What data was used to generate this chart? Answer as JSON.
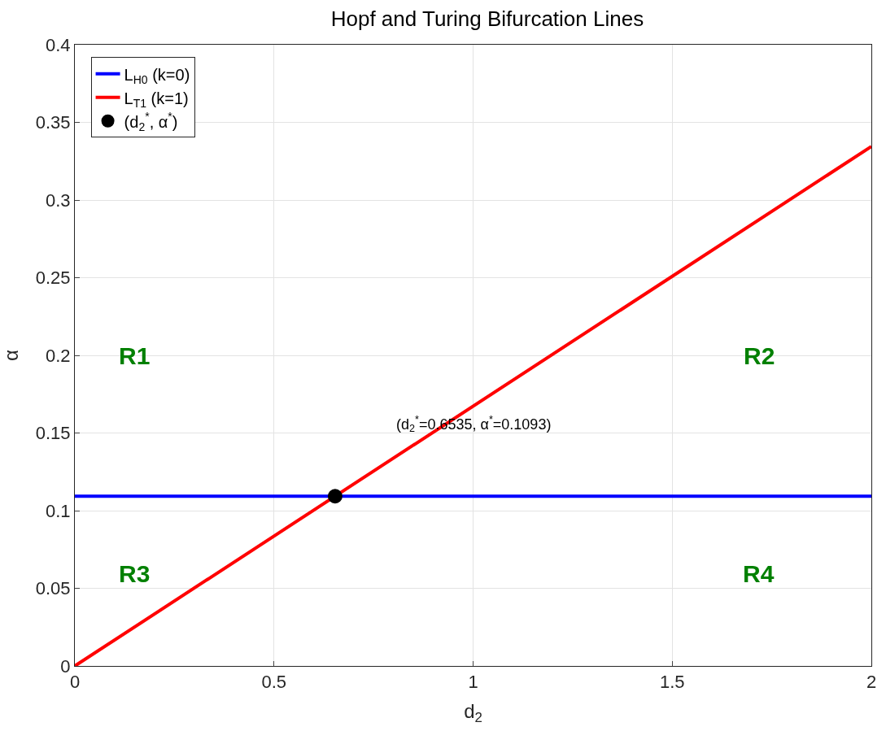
{
  "chart_data": {
    "type": "line",
    "title": "Hopf and Turing Bifurcation Lines",
    "xlabel": "d$_{2}$",
    "ylabel": "α",
    "xlim": [
      0,
      2
    ],
    "xticks": [
      0,
      0.5,
      1,
      1.5,
      2
    ],
    "ylim": [
      0,
      0.4
    ],
    "yticks": [
      0,
      0.05,
      0.1,
      0.15,
      0.2,
      0.25,
      0.3,
      0.35,
      0.4
    ],
    "grid": true,
    "legend": "top left",
    "series": [
      {
        "name": "L$_{H0}$ (k=0)",
        "color": "#0000ff",
        "x": [
          0,
          2
        ],
        "values": [
          0.1093,
          0.1093
        ]
      },
      {
        "name": "L$_{T1}$ (k=1)",
        "color": "#ff0000",
        "x": [
          0,
          2
        ],
        "values": [
          0,
          0.3345
        ]
      },
      {
        "name": "(d$_{2}$$^{*}$, α$^{*}$)",
        "color": "#000000",
        "type": "scatter",
        "marker": "circle",
        "x": [
          0.6535
        ],
        "values": [
          0.1093
        ]
      }
    ],
    "annotations": [
      "(d$_{2}$$^{*}$=0.6535, α$^{*}$=0.1093)",
      "R1",
      "R2",
      "R3",
      "R4"
    ]
  }
}
